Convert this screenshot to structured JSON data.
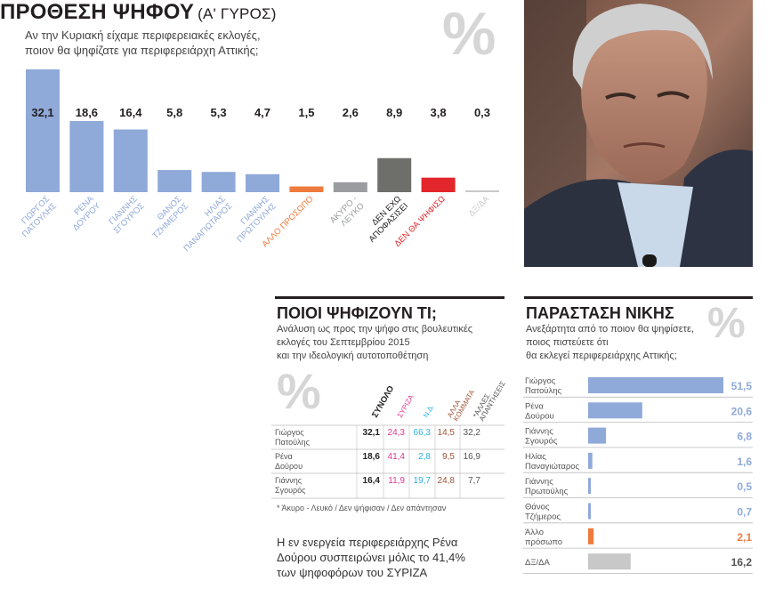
{
  "header": {
    "title": "ΠΡΟΘΕΣΗ ΨΗΦΟΥ",
    "title_suffix": "(Α' ΓΥΡΟΣ)",
    "subtitle_line1": "Αν την Κυριακή είχαμε περιφερειακές εκλογές,",
    "subtitle_line2": "ποιον θα ψηφίζατε για περιφερειάρχη Αττικής;",
    "percent_glyph": "%"
  },
  "colors": {
    "blue": "#8fa9d9",
    "orange": "#ee7a3d",
    "gray": "#9a9c9f",
    "darkgray": "#6e6f6b",
    "red": "#e2262b",
    "lightgray": "#c8c8c8",
    "pink": "#e0388f",
    "cyan": "#2bb2e0",
    "brown": "#a0553a"
  },
  "chart_data": [
    {
      "type": "bar",
      "title": "ΠΡΟΘΕΣΗ ΨΗΦΟΥ (Α' ΓΥΡΟΣ)",
      "categories": [
        "ΓΙΩΡΓΟΣ ΠΑΤΟΥΛΗΣ",
        "ΡΕΝΑ ΔΟΥΡΟΥ",
        "ΓΙΑΝΝΗΣ ΣΓΟΥΡΟΣ",
        "ΘΑΝΟΣ ΤΖΗΜΕΡΟΣ",
        "ΗΛΙΑΣ ΠΑΝΑΓΙΩΤΑΡΟΣ",
        "ΓΙΑΝΝΗΣ ΠΡΩΤΟΥΛΗΣ",
        "ΑΛΛΟ ΠΡΟΣΩΠΟ",
        "ΑΚΥΡΟ - ΛΕΥΚΟ",
        "ΔΕΝ ΕΧΩ ΑΠΟΦΑΣΙΣΕΙ",
        "ΔΕΝ ΘΑ ΨΗΦΙΣΩ",
        "ΔΞ/ΔΑ"
      ],
      "category_lines": [
        [
          "ΓΙΩΡΓΟΣ",
          "ΠΑΤΟΥΛΗΣ"
        ],
        [
          "ΡΕΝΑ",
          "ΔΟΥΡΟΥ"
        ],
        [
          "ΓΙΑΝΝΗΣ",
          "ΣΓΟΥΡΟΣ"
        ],
        [
          "ΘΑΝΟΣ",
          "ΤΖΗΜΕΡΟΣ"
        ],
        [
          "ΗΛΙΑΣ",
          "ΠΑΝΑΓΙΩΤΑΡΟΣ"
        ],
        [
          "ΓΙΑΝΝΗΣ",
          "ΠΡΩΤΟΥΛΗΣ"
        ],
        [
          "ΑΛΛΟ ΠΡΟΣΩΠΟ"
        ],
        [
          "ΑΚΥΡΟ -",
          "ΛΕΥΚΟ"
        ],
        [
          "ΔΕΝ ΕΧΩ",
          "ΑΠΟΦΑΣΙΣΕΙ"
        ],
        [
          "ΔΕΝ ΘΑ ΨΗΦΙΣΩ"
        ],
        [
          "ΔΞ/ΔΑ"
        ]
      ],
      "values": [
        32.1,
        18.6,
        16.4,
        5.8,
        5.3,
        4.7,
        1.5,
        2.6,
        8.9,
        3.8,
        0.3
      ],
      "value_labels": [
        "32,1",
        "18,6",
        "16,4",
        "5,8",
        "5,3",
        "4,7",
        "1,5",
        "2,6",
        "8,9",
        "3,8",
        "0,3"
      ],
      "bar_colors": [
        "blue",
        "blue",
        "blue",
        "blue",
        "blue",
        "blue",
        "orange",
        "gray",
        "darkgray",
        "red",
        "lightgray"
      ],
      "label_colors": [
        "blue",
        "blue",
        "blue",
        "blue",
        "blue",
        "blue",
        "orange",
        "gray",
        "#231f20",
        "red",
        "lightgray"
      ]
    },
    {
      "type": "bar",
      "title": "ΠΑΡΑΣΤΑΣΗ ΝΙΚΗΣ",
      "categories": [
        "Γιώργος Πατούλης",
        "Ρένα Δούρου",
        "Γιάννης Σγουρός",
        "Ηλίας Παναγιώταρος",
        "Γιάννης Πρωτούλης",
        "Θάνος Τζήμερος",
        "Άλλο πρόσωπο",
        "ΔΞ/ΔΑ"
      ],
      "category_lines": [
        [
          "Γιώργος",
          "Πατούλης"
        ],
        [
          "Ρένα",
          "Δούρου"
        ],
        [
          "Γιάννης",
          "Σγουρός"
        ],
        [
          "Ηλίας",
          "Παναγιώταρος"
        ],
        [
          "Γιάννης",
          "Πρωτούλης"
        ],
        [
          "Θάνος",
          "Τζήμερος"
        ],
        [
          "Άλλο",
          "πρόσωπο"
        ],
        [
          "ΔΞ/ΔΑ"
        ]
      ],
      "values": [
        51.5,
        20.6,
        6.8,
        1.6,
        0.5,
        0.7,
        2.1,
        16.2
      ],
      "value_labels": [
        "51,5",
        "20,6",
        "6,8",
        "1,6",
        "0,5",
        "0,7",
        "2,1",
        "16,2"
      ],
      "bar_colors": [
        "blue",
        "blue",
        "blue",
        "blue",
        "blue",
        "blue",
        "orange",
        "lightgray"
      ],
      "label_colors": [
        "blue",
        "blue",
        "blue",
        "blue",
        "blue",
        "blue",
        "orange",
        "#555555"
      ]
    },
    {
      "type": "table",
      "title": "ΠΟΙΟΙ ΨΗΦΙΖΟΥΝ ΤΙ;",
      "columns": [
        "ΣΥΝΟΛΟ",
        "ΣΥΡΙΖΑ",
        "Ν.Δ.",
        "ΑΛΛΑ ΚΟΜΜΑΤΑ",
        "*ΑΛΛΕΣ ΑΠΑΝΤΗΣΕΙΣ"
      ],
      "column_lines": [
        [
          "ΣΥΝΟΛΟ"
        ],
        [
          "ΣΥΡΙΖΑ"
        ],
        [
          "Ν.Δ."
        ],
        [
          "ΑΛΛΑ",
          "ΚΟΜΜΑΤΑ"
        ],
        [
          "*ΑΛΛΕΣ",
          "ΑΠΑΝΤΗΣΕΙΣ"
        ]
      ],
      "column_colors": [
        "#231f20",
        "pink",
        "cyan",
        "brown",
        "#555555"
      ],
      "rows": [
        {
          "name": [
            "Γιώργος",
            "Πατούλης"
          ],
          "values": [
            "32,1",
            "24,3",
            "66,3",
            "14,5",
            "32,2"
          ]
        },
        {
          "name": [
            "Ρένα",
            "Δούρου"
          ],
          "values": [
            "18,6",
            "41,4",
            "2,8",
            "9,5",
            "16,9"
          ]
        },
        {
          "name": [
            "Γιάννης",
            "Σγουρός"
          ],
          "values": [
            "16,4",
            "11,9",
            "19,7",
            "24,8",
            "7,7"
          ]
        }
      ]
    }
  ],
  "photo_alt": "portrait",
  "section_table": {
    "title": "ΠΟΙΟΙ ΨΗΦΙΖΟΥΝ ΤΙ;",
    "sub_line1": "Ανάλυση ως προς την ψήφο στις βουλευτικές",
    "sub_line2": "εκλογές του Σεπτεμβρίου 2015",
    "sub_line3": "και την ιδεολογική αυτοτοποθέτηση",
    "footnote": "* Άκυρο - Λευκό / Δεν ψήφισαν / Δεν απάντησαν",
    "quote_line1": "Η εν ενεργεία περιφερειάρχης Ρένα",
    "quote_line2": "Δούρου συσπειρώνει μόλις το 41,4%",
    "quote_line3": "των ψηφοφόρων του ΣΥΡΙΖΑ"
  },
  "section_victory": {
    "title": "ΠΑΡΑΣΤΑΣΗ ΝΙΚΗΣ",
    "sub_line1": "Ανεξάρτητα από το ποιον θα ψηφίσετε,",
    "sub_line2": "ποιος πιστεύετε ότι",
    "sub_line3": "θα εκλεγεί περιφερειάρχης Αττικής;"
  }
}
